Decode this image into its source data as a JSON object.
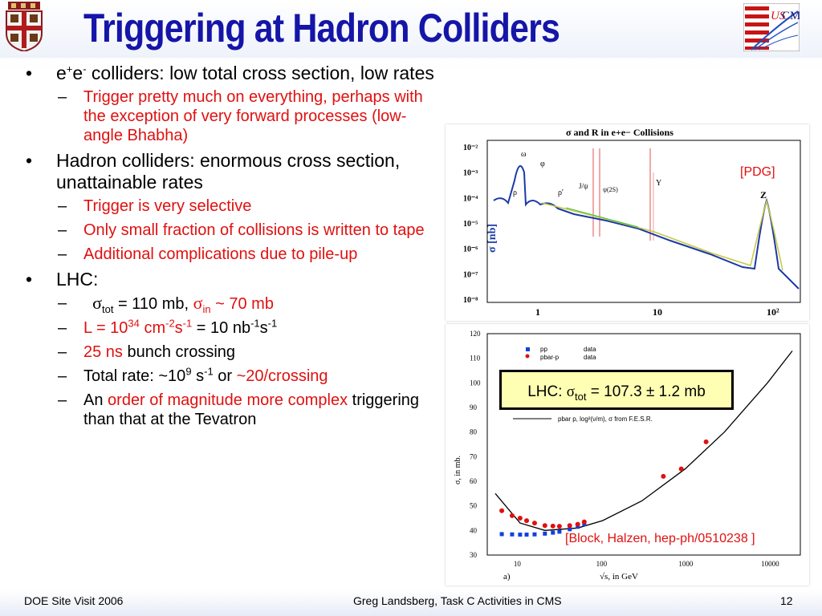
{
  "title": "Triggering at Hadron Colliders",
  "bullets": {
    "b1": {
      "p1": "e",
      "sup1": "+",
      "p2": "e",
      "sup2": "-",
      "p3": " colliders: low total cross section, low rates",
      "sub": [
        "Trigger pretty much on everything, perhaps with the exception of very forward processes (low-angle Bhabha)"
      ]
    },
    "b2": {
      "text": "Hadron colliders: enormous cross section, unattainable rates",
      "sub": [
        "Trigger is very selective",
        "Only small fraction of collisions is written to tape",
        "Additional complications due to pile-up"
      ]
    },
    "b3": {
      "text": "LHC:",
      "s1": {
        "sigma": "σ",
        "tot": "tot",
        "mid": " = 110 mb, ",
        "sigma2": "σ",
        "in": "in",
        "end": " ~ 70 mb"
      },
      "s2": {
        "a": "L = 10",
        "sup1": "34",
        "b": " cm",
        "sup2": "-2",
        "c": "s",
        "sup3": "-1",
        "d": " = 10 nb",
        "sup4": "-1",
        "e": "s",
        "sup5": "-1"
      },
      "s3": {
        "a": "25 ns",
        "b": " bunch crossing"
      },
      "s4": {
        "a": "Total rate: ~10",
        "sup1": "9",
        "b": " s",
        "sup2": "-1",
        "c": " or ",
        "d": "~20/crossing"
      },
      "s5": {
        "a": "An ",
        "b": "order of magnitude more complex",
        "c": " triggering than that at the Tevatron"
      }
    }
  },
  "figure1": {
    "title": "σ and R in e+e− Collisions",
    "ylabel": "σ [nb]",
    "yticks": [
      "10⁻²",
      "10⁻³",
      "10⁻⁴",
      "10⁻⁵",
      "10⁻⁶",
      "10⁻⁷",
      "10⁻⁸"
    ],
    "xticks": [
      "1",
      "10",
      "10²"
    ],
    "labels": [
      "ω",
      "φ",
      "ρ",
      "ρ'",
      "J/ψ",
      "ψ(2S)",
      "Υ",
      "Z"
    ],
    "source": "[PDG]"
  },
  "figure2": {
    "ylabel": "σ, in mb.",
    "xlabel": "√s, in GeV",
    "yticks": [
      "120",
      "110",
      "100",
      "90",
      "80",
      "70",
      "60",
      "50",
      "40",
      "30"
    ],
    "xticks": [
      "10",
      "100",
      "1000",
      "10000"
    ],
    "legend": [
      "pp",
      "pbar-p",
      "data",
      "data"
    ],
    "fitlabel": "pbar p, log²(ν/m), σ from F.E.S.R.",
    "panel": "a)",
    "lhc_a": "LHC: ",
    "lhc_sigma": "σ",
    "lhc_tot": "tot",
    "lhc_b": " = 107.3 ± 1.2 mb",
    "source": "[Block, Halzen, hep-ph/0510238 ]"
  },
  "footer": {
    "left": "DOE Site Visit 2006",
    "center": "Greg Landsberg, Task C Activities in CMS",
    "page": "12"
  },
  "chart_data": [
    {
      "type": "line",
      "title": "σ and R in e+e− Collisions",
      "ylabel": "σ [nb]",
      "xscale": "log",
      "yscale": "log",
      "ylim": [
        1e-08,
        0.01
      ],
      "x": [
        0.4,
        0.6,
        0.78,
        1.02,
        1.5,
        2.0,
        3.1,
        5,
        10,
        20,
        50,
        91,
        150
      ],
      "y": [
        0.0002,
        0.00015,
        0.0013,
        0.002,
        3e-05,
        1e-05,
        5e-06,
        4e-06,
        8e-07,
        2.5e-07,
        5e-08,
        0.0001,
        1e-07
      ],
      "annotations": [
        "ω",
        "φ",
        "ρ",
        "ρ'",
        "J/ψ",
        "ψ(2S)",
        "Υ",
        "Z"
      ]
    },
    {
      "type": "scatter",
      "xlabel": "√s, in GeV",
      "ylabel": "σ, in mb.",
      "xscale": "log",
      "ylim": [
        30,
        120
      ],
      "series": [
        {
          "name": "pp",
          "x": [
            6,
            8,
            10,
            12,
            15,
            20,
            25,
            30,
            40,
            50,
            60
          ],
          "y": [
            38.5,
            38.4,
            38.3,
            38.3,
            38.4,
            38.7,
            39.1,
            39.5,
            40.5,
            41.5,
            42.5
          ]
        },
        {
          "name": "pbar-p",
          "x": [
            6,
            8,
            10,
            12,
            15,
            20,
            25,
            30,
            40,
            50,
            60,
            546,
            900,
            1800
          ],
          "y": [
            48,
            46,
            45,
            44,
            43,
            42,
            41.8,
            41.7,
            42,
            42.5,
            43.5,
            62,
            65,
            76
          ]
        },
        {
          "name": "fit",
          "x": [
            5,
            10,
            20,
            50,
            100,
            300,
            1000,
            3000,
            10000,
            20000
          ],
          "y": [
            55,
            43,
            40,
            41,
            44,
            52,
            65,
            80,
            100,
            113
          ]
        }
      ]
    }
  ]
}
